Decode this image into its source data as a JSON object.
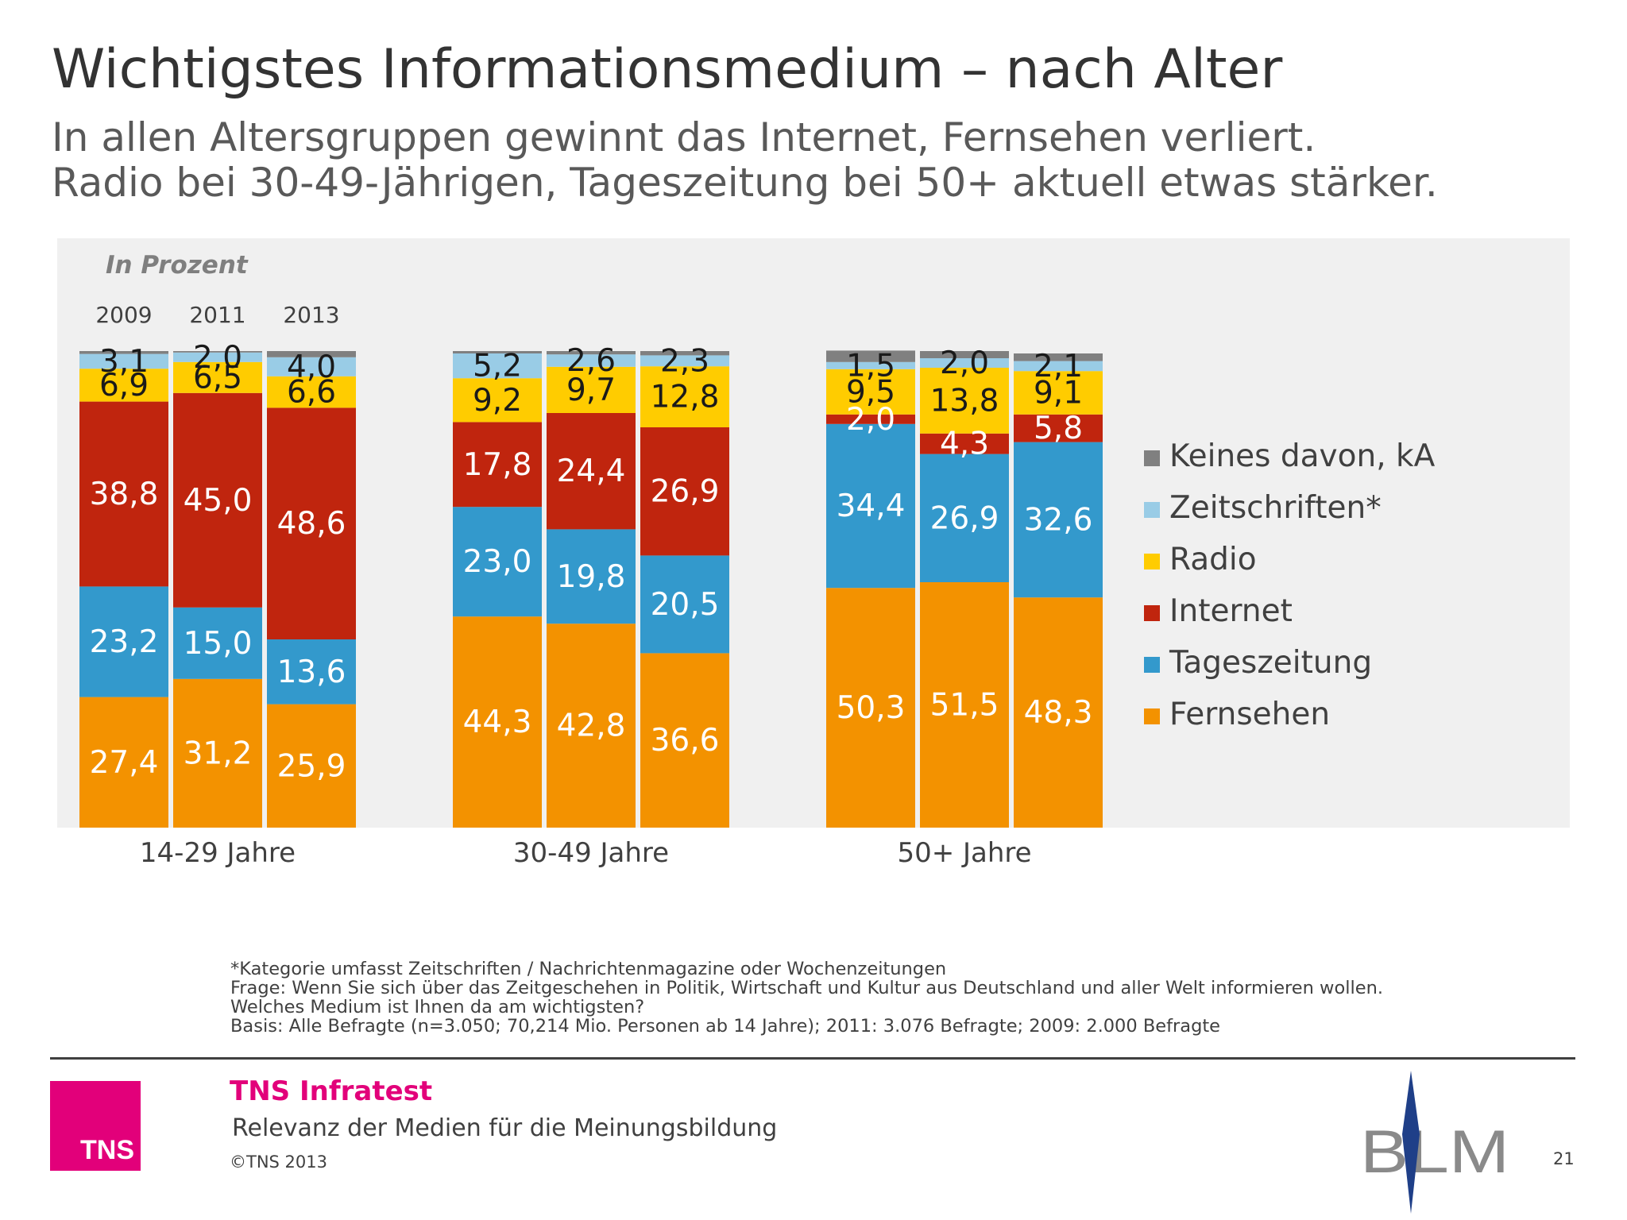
{
  "page": {
    "title": "Wichtigstes Informationsmedium – nach Alter",
    "subtitle_line1": "In allen Altersgruppen gewinnt das Internet, Fernsehen verliert.",
    "subtitle_line2": "Radio bei 30-49-Jährigen, Tageszeitung bei 50+ aktuell etwas stärker."
  },
  "footnotes": [
    "*Kategorie umfasst Zeitschriften / Nachrichtenmagazine oder Wochenzeitungen",
    "Frage: Wenn Sie sich über das Zeitgeschehen in Politik, Wirtschaft und Kultur aus Deutschland und aller Welt informieren wollen.",
    "Welches Medium ist Ihnen da am wichtigsten?",
    "Basis: Alle Befragte (n=3.050; 70,214 Mio. Personen ab 14 Jahre); 2011: 3.076 Befragte; 2009: 2.000 Befragte"
  ],
  "footer": {
    "company": "TNS Infratest",
    "report_title": "Relevanz der Medien für die Meinungsbildung",
    "copyright": "©TNS 2013",
    "page_number": "21",
    "logo_text": "TNS",
    "partner_logo_text": "BLM"
  },
  "colors": {
    "Fernsehen": "#f39200",
    "Tageszeitung": "#3399cc",
    "Internet": "#c0250e",
    "Radio": "#ffcc00",
    "Zeitschriften*": "#99cce6",
    "Keines davon, kA": "#808080",
    "panel": "#f0f0f0",
    "accent": "#e2007a"
  },
  "chart_data": {
    "type": "bar",
    "stacked": true,
    "unit_label": "In Prozent",
    "ylim": [
      0,
      100
    ],
    "years": [
      "2009",
      "2011",
      "2013"
    ],
    "groups": [
      "14-29 Jahre",
      "30-49 Jahre",
      "50+ Jahre"
    ],
    "legend_position": "right",
    "series": [
      {
        "name": "Fernsehen",
        "values": [
          [
            27.4,
            31.2,
            25.9
          ],
          [
            44.3,
            42.8,
            36.6
          ],
          [
            50.3,
            51.5,
            48.3
          ]
        ],
        "labels": [
          [
            "27,4",
            "31,2",
            "25,9"
          ],
          [
            "44,3",
            "42,8",
            "36,6"
          ],
          [
            "50,3",
            "51,5",
            "48,3"
          ]
        ]
      },
      {
        "name": "Tageszeitung",
        "values": [
          [
            23.2,
            15.0,
            13.6
          ],
          [
            23.0,
            19.8,
            20.5
          ],
          [
            34.4,
            26.9,
            32.6
          ]
        ],
        "labels": [
          [
            "23,2",
            "15,0",
            "13,6"
          ],
          [
            "23,0",
            "19,8",
            "20,5"
          ],
          [
            "34,4",
            "26,9",
            "32,6"
          ]
        ]
      },
      {
        "name": "Internet",
        "values": [
          [
            38.8,
            45.0,
            48.6
          ],
          [
            17.8,
            24.4,
            26.9
          ],
          [
            2.0,
            4.3,
            5.8
          ]
        ],
        "labels": [
          [
            "38,8",
            "45,0",
            "48,6"
          ],
          [
            "17,8",
            "24,4",
            "26,9"
          ],
          [
            "2,0",
            "4,3",
            "5,8"
          ]
        ]
      },
      {
        "name": "Radio",
        "values": [
          [
            6.9,
            6.5,
            6.6
          ],
          [
            9.2,
            9.7,
            12.8
          ],
          [
            9.5,
            13.8,
            9.1
          ]
        ],
        "labels": [
          [
            "6,9",
            "6,5",
            "6,6"
          ],
          [
            "9,2",
            "9,7",
            "12,8"
          ],
          [
            "9,5",
            "13,8",
            "9,1"
          ]
        ]
      },
      {
        "name": "Zeitschriften*",
        "values": [
          [
            3.1,
            2.0,
            4.0
          ],
          [
            5.2,
            2.6,
            2.3
          ],
          [
            1.5,
            2.0,
            2.1
          ]
        ],
        "labels": [
          [
            "3,1",
            "2,0",
            "4,0"
          ],
          [
            "5,2",
            "2,6",
            "2,3"
          ],
          [
            "1,5",
            "2,0",
            "2,1"
          ]
        ]
      },
      {
        "name": "Keines davon, kA",
        "values": [
          [
            0.6,
            0.3,
            1.3
          ],
          [
            0.5,
            0.7,
            0.9
          ],
          [
            2.4,
            1.5,
            1.6
          ]
        ]
      }
    ]
  }
}
